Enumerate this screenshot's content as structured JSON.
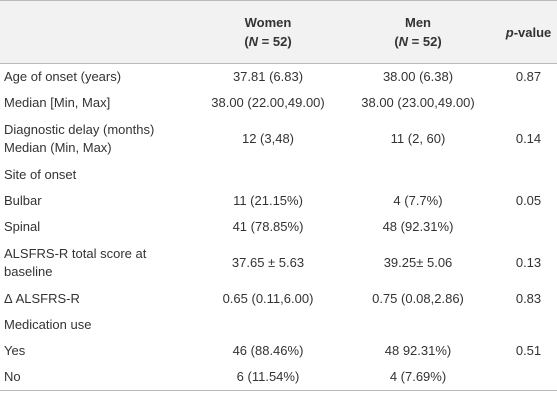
{
  "table": {
    "header": {
      "women": {
        "title": "Women",
        "sub": {
          "pre": "(",
          "italic": "N",
          "post": " = 52)"
        }
      },
      "men": {
        "title": "Men",
        "sub": {
          "pre": "(",
          "italic": "N",
          "post": " = 52)"
        }
      },
      "p": {
        "italic": "p",
        "post": "-value"
      }
    },
    "rows": [
      {
        "label": [
          "Age of onset (years)"
        ],
        "women": "37.81 (6.83)",
        "men": "38.00 (6.38)",
        "p": "0.87"
      },
      {
        "label": [
          "Median [Min, Max]"
        ],
        "women": "38.00 (22.00,49.00)",
        "men": "38.00 (23.00,49.00)"
      },
      {
        "label": [
          "Diagnostic delay (months)",
          "Median (Min, Max)"
        ],
        "women": "12 (3,48)",
        "men": "11 (2, 60)",
        "p": "0.14"
      },
      {
        "label": [
          "Site of onset"
        ]
      },
      {
        "label": [
          "Bulbar"
        ],
        "women": "11 (21.15%)",
        "men": "4 (7.7%)",
        "p": "0.05"
      },
      {
        "label": [
          "Spinal"
        ],
        "women": "41 (78.85%)",
        "men": "48 (92.31%)"
      },
      {
        "label": [
          "ALSFRS-R total score at",
          "baseline"
        ],
        "women": "37.65 ± 5.63",
        "men": "39.25± 5.06",
        "p": "0.13"
      },
      {
        "label": [
          "Δ ALSFRS-R"
        ],
        "women": "0.65 (0.11,6.00)",
        "men": "0.75 (0.08,2.86)",
        "p": "0.83"
      },
      {
        "label": [
          "Medication use"
        ]
      },
      {
        "label": [
          "Yes"
        ],
        "women": "46 (88.46%)",
        "men": "48 92.31%)",
        "p": "0.51"
      },
      {
        "label": [
          "No"
        ],
        "women": "6 (11.54%)",
        "men": "4 (7.69%)"
      }
    ]
  }
}
